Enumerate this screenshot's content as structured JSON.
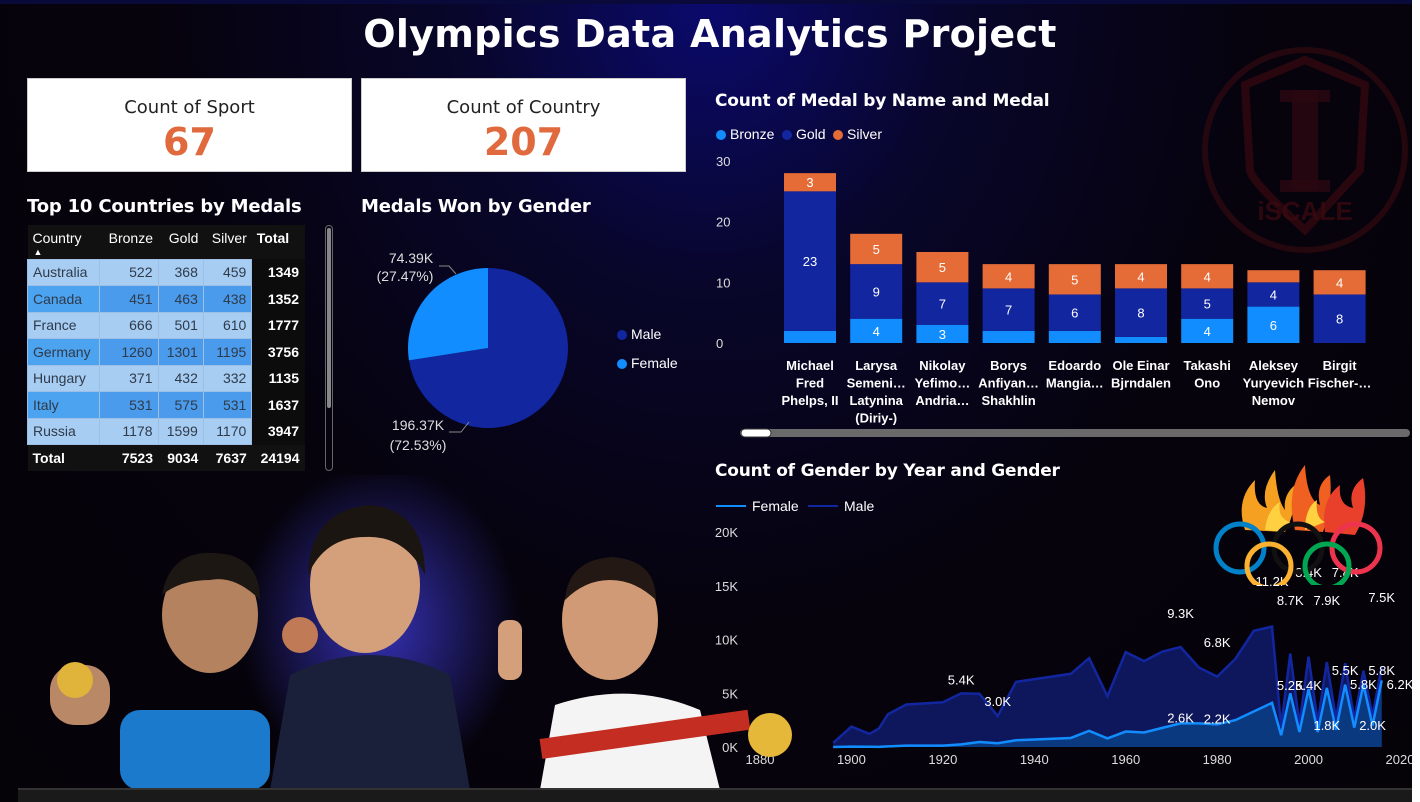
{
  "title": "Olympics Data Analytics Project",
  "cards": [
    {
      "label": "Count of Sport",
      "value": "67"
    },
    {
      "label": "Count of Country",
      "value": "207"
    }
  ],
  "table": {
    "title": "Top 10 Countries by Medals",
    "headers": [
      "Country",
      "Bronze",
      "Gold",
      "Silver",
      "Total"
    ],
    "rows": [
      [
        "Australia",
        "522",
        "368",
        "459",
        "1349"
      ],
      [
        "Canada",
        "451",
        "463",
        "438",
        "1352"
      ],
      [
        "France",
        "666",
        "501",
        "610",
        "1777"
      ],
      [
        "Germany",
        "1260",
        "1301",
        "1195",
        "3756"
      ],
      [
        "Hungary",
        "371",
        "432",
        "332",
        "1135"
      ],
      [
        "Italy",
        "531",
        "575",
        "531",
        "1637"
      ],
      [
        "Russia",
        "1178",
        "1599",
        "1170",
        "3947"
      ]
    ],
    "total": [
      "Total",
      "7523",
      "9034",
      "7637",
      "24194"
    ]
  },
  "gender_pie": {
    "title": "Medals Won by Gender",
    "legend": [
      "Male",
      "Female"
    ],
    "colors": {
      "Male": "#1226a0",
      "Female": "#118dff"
    },
    "labels": {
      "female_value": "74.39K",
      "female_pct": "(27.47%)",
      "male_value": "196.37K",
      "male_pct": "(72.53%)"
    }
  },
  "medal_chart": {
    "title": "Count of Medal by Name and Medal",
    "legend": [
      "Bronze",
      "Gold",
      "Silver"
    ],
    "colors": {
      "Bronze": "#118dff",
      "Gold": "#1226a0",
      "Silver": "#e66c37"
    },
    "y_ticks": [
      "30",
      "20",
      "10",
      "0"
    ]
  },
  "gender_chart": {
    "title": "Count of Gender by Year and Gender",
    "legend": [
      "Female",
      "Male"
    ],
    "colors": {
      "Female": "#118dff",
      "Male": "#1226a0"
    },
    "y_ticks": [
      "20K",
      "15K",
      "10K",
      "5K",
      "0K"
    ],
    "x_ticks": [
      "1880",
      "1900",
      "1920",
      "1940",
      "1960",
      "1980",
      "2000",
      "2020"
    ],
    "annotations": [
      "5.4K",
      "3.0K",
      "9.3K",
      "6.8K",
      "2.6K",
      "2.2K",
      "11.2K",
      "8.7K",
      "8.4K",
      "7.9K",
      "7.8K",
      "7.5K",
      "5.2K",
      "5.4K",
      "5.5K",
      "5.8K",
      "5.8K",
      "6.2K",
      "1.8K",
      "2.0K"
    ]
  },
  "chart_data": [
    {
      "type": "bar",
      "title": "Count of Medal by Name and Medal",
      "stacked": true,
      "categories": [
        "Michael Fred Phelps, II",
        "Larysa Semeni… Latynina (Diriy-)",
        "Nikolay Yefimo… Andria…",
        "Borys Anfiyan… Shakhlin",
        "Edoardo Mangia…",
        "Ole Einar Bjrndalen",
        "Takashi Ono",
        "Aleksey Yuryevich Nemov",
        "Birgit Fischer-…"
      ],
      "category_lines": [
        [
          "Michael",
          "Fred",
          "Phelps, II"
        ],
        [
          "Larysa",
          "Semeni…",
          "Latynina",
          "(Diriy-)"
        ],
        [
          "Nikolay",
          "Yefimo…",
          "Andria…"
        ],
        [
          "Borys",
          "Anfiyan…",
          "Shakhlin"
        ],
        [
          "Edoardo",
          "Mangia…"
        ],
        [
          "Ole Einar",
          "Bjrndalen"
        ],
        [
          "Takashi",
          "Ono"
        ],
        [
          "Aleksey",
          "Yuryevich",
          "Nemov"
        ],
        [
          "Birgit",
          "Fischer-…"
        ]
      ],
      "series": [
        {
          "name": "Bronze",
          "values": [
            2,
            4,
            3,
            2,
            2,
            1,
            4,
            6,
            0
          ]
        },
        {
          "name": "Gold",
          "values": [
            23,
            9,
            7,
            7,
            6,
            8,
            5,
            4,
            8
          ]
        },
        {
          "name": "Silver",
          "values": [
            3,
            5,
            5,
            4,
            5,
            4,
            4,
            2,
            4
          ]
        }
      ],
      "data_labels": {
        "Bronze": [
          "",
          "4",
          "3",
          "",
          "",
          "",
          "4",
          "6",
          ""
        ],
        "Gold": [
          "23",
          "9",
          "7",
          "7",
          "6",
          "8",
          "5",
          "4",
          "8"
        ],
        "Silver": [
          "3",
          "5",
          "5",
          "4",
          "5",
          "4",
          "4",
          "",
          "4"
        ]
      },
      "ylim": [
        0,
        30
      ],
      "legend_position": "top-left"
    },
    {
      "type": "pie",
      "title": "Medals Won by Gender",
      "labels": [
        "Male",
        "Female"
      ],
      "values": [
        196370,
        74390
      ],
      "percentages": [
        72.53,
        27.47
      ]
    },
    {
      "type": "area",
      "title": "Count of Gender by Year and Gender",
      "x": [
        1896,
        1900,
        1904,
        1906,
        1908,
        1912,
        1920,
        1924,
        1928,
        1932,
        1936,
        1948,
        1952,
        1956,
        1960,
        1964,
        1968,
        1972,
        1976,
        1980,
        1984,
        1988,
        1992,
        1994,
        1996,
        1998,
        2000,
        2002,
        2004,
        2006,
        2008,
        2010,
        2012,
        2014,
        2016
      ],
      "series": [
        {
          "name": "Male",
          "values": [
            380,
            1900,
            1220,
            1720,
            3050,
            3950,
            4160,
            4990,
            4950,
            2880,
            6060,
            6810,
            8270,
            4720,
            8830,
            7990,
            8870,
            9300,
            7400,
            6550,
            8200,
            10800,
            11200,
            1900,
            8700,
            2100,
            8400,
            2300,
            7900,
            2600,
            7800,
            2600,
            7100,
            2900,
            7500
          ]
        },
        {
          "name": "Female",
          "values": [
            0,
            30,
            20,
            10,
            60,
            130,
            130,
            240,
            460,
            350,
            630,
            840,
            1500,
            800,
            1440,
            1350,
            1780,
            2200,
            2200,
            2100,
            2500,
            3300,
            4100,
            1100,
            5000,
            1400,
            5400,
            1400,
            5500,
            1600,
            5800,
            1800,
            5800,
            2000,
            6200
          ]
        }
      ],
      "ylim": [
        0,
        20000
      ],
      "xlim": [
        1880,
        2020
      ],
      "legend_position": "top-left"
    }
  ]
}
